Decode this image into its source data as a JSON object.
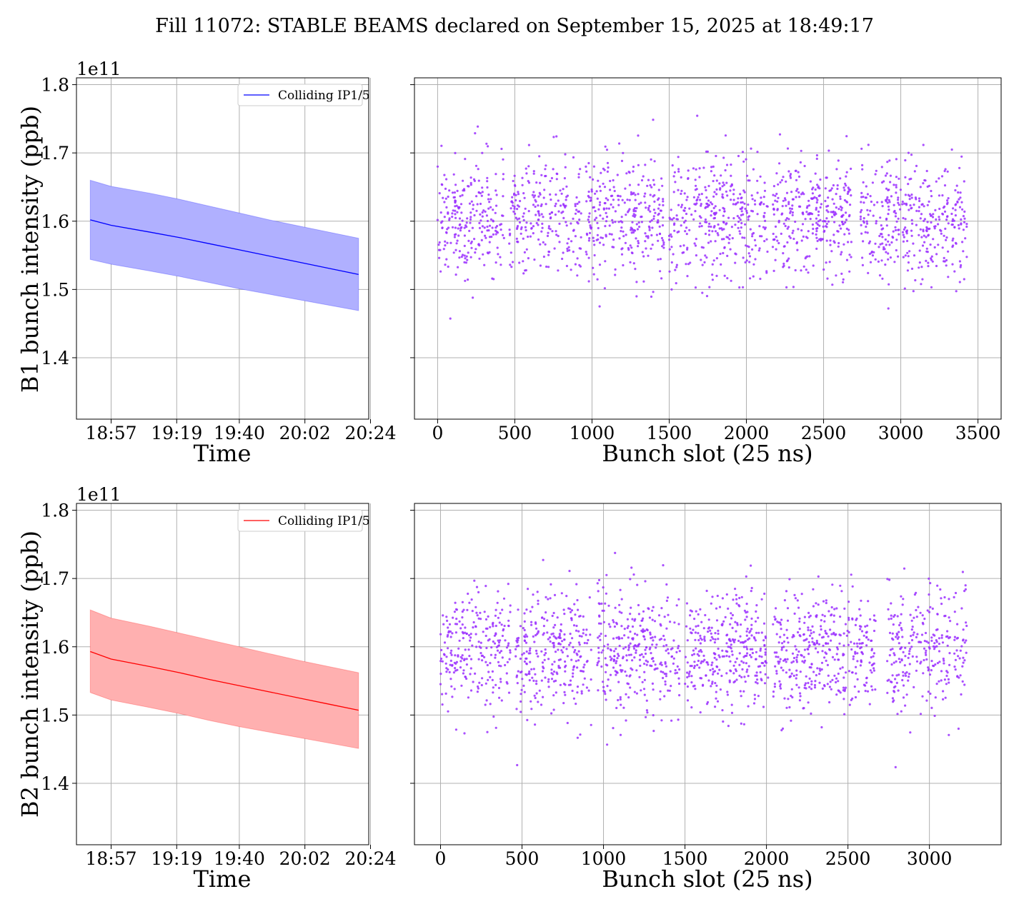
{
  "suptitle": "Fill 11072: STABLE BEAMS declared on September 15, 2025 at 18:49:17",
  "chart_data": [
    {
      "id": "b1_time",
      "type": "line",
      "title": "",
      "xlabel": "Time",
      "ylabel": "B1 bunch intensity (ppb)",
      "y_offset_label": "1e11",
      "x_tick_labels": [
        "18:57",
        "19:19",
        "19:40",
        "20:02",
        "20:24"
      ],
      "y_ticks": [
        1.4,
        1.5,
        1.6,
        1.7,
        1.8
      ],
      "ylim": [
        1.31,
        1.81
      ],
      "grid": true,
      "legend": {
        "placement": "upper right",
        "entries": [
          "Colliding IP1/5"
        ]
      },
      "color": "#0000ff",
      "band_color": "#b0b0ff",
      "series": [
        {
          "name": "Colliding IP1/5",
          "x": [
            "18:50",
            "18:57",
            "19:10",
            "19:20",
            "19:30",
            "19:40",
            "19:50",
            "20:00",
            "20:10",
            "20:20"
          ],
          "mean": [
            1.602,
            1.594,
            1.584,
            1.576,
            1.567,
            1.558,
            1.549,
            1.54,
            1.531,
            1.522
          ],
          "upper": [
            1.66,
            1.651,
            1.641,
            1.632,
            1.622,
            1.612,
            1.602,
            1.593,
            1.584,
            1.575
          ],
          "lower": [
            1.544,
            1.537,
            1.527,
            1.519,
            1.51,
            1.501,
            1.493,
            1.485,
            1.477,
            1.469
          ]
        }
      ]
    },
    {
      "id": "b1_slot",
      "type": "scatter",
      "title": "",
      "xlabel": "Bunch slot (25 ns)",
      "ylabel": "",
      "x_ticks": [
        0,
        500,
        1000,
        1500,
        2000,
        2500,
        3000,
        3500
      ],
      "xlim": [
        -150,
        3650
      ],
      "ylim": [
        1.31,
        1.81
      ],
      "grid": true,
      "color": "#9b30ff",
      "points": {
        "n": 1800,
        "x_range": [
          0,
          3430
        ],
        "y_center": 1.605,
        "y_spread": 0.045,
        "y_min": 1.33,
        "y_max": 1.77,
        "gaps": [
          [
            430,
            460
          ],
          [
            930,
            960
          ],
          [
            1470,
            1500
          ],
          [
            2140,
            2170
          ],
          [
            2680,
            2740
          ],
          [
            3310,
            3330
          ]
        ]
      }
    },
    {
      "id": "b2_time",
      "type": "line",
      "title": "",
      "xlabel": "Time",
      "ylabel": "B2 bunch intensity (ppb)",
      "y_offset_label": "1e11",
      "x_tick_labels": [
        "18:57",
        "19:19",
        "19:40",
        "20:02",
        "20:24"
      ],
      "y_ticks": [
        1.4,
        1.5,
        1.6,
        1.7,
        1.8
      ],
      "ylim": [
        1.31,
        1.81
      ],
      "grid": true,
      "legend": {
        "placement": "upper right",
        "entries": [
          "Colliding IP1/5"
        ]
      },
      "color": "#ff0000",
      "band_color": "#ffb0b0",
      "series": [
        {
          "name": "Colliding IP1/5",
          "x": [
            "18:50",
            "18:57",
            "19:10",
            "19:20",
            "19:30",
            "19:40",
            "19:50",
            "20:00",
            "20:10",
            "20:20"
          ],
          "mean": [
            1.593,
            1.582,
            1.571,
            1.562,
            1.552,
            1.543,
            1.534,
            1.525,
            1.516,
            1.507
          ],
          "upper": [
            1.654,
            1.642,
            1.63,
            1.62,
            1.61,
            1.6,
            1.59,
            1.58,
            1.571,
            1.562
          ],
          "lower": [
            1.533,
            1.522,
            1.511,
            1.502,
            1.492,
            1.483,
            1.475,
            1.467,
            1.459,
            1.451
          ]
        }
      ]
    },
    {
      "id": "b2_slot",
      "type": "scatter",
      "title": "",
      "xlabel": "Bunch slot (25 ns)",
      "ylabel": "",
      "x_ticks": [
        0,
        500,
        1000,
        1500,
        2000,
        2500,
        3000
      ],
      "xlim": [
        -160,
        3440
      ],
      "ylim": [
        1.31,
        1.81
      ],
      "grid": true,
      "color": "#9b30ff",
      "points": {
        "n": 1800,
        "x_range": [
          0,
          3230
        ],
        "y_center": 1.595,
        "y_spread": 0.045,
        "y_min": 1.34,
        "y_max": 1.78,
        "gaps": [
          [
            430,
            460
          ],
          [
            930,
            960
          ],
          [
            1470,
            1500
          ],
          [
            2010,
            2040
          ],
          [
            2670,
            2740
          ],
          [
            3130,
            3150
          ]
        ]
      }
    }
  ]
}
